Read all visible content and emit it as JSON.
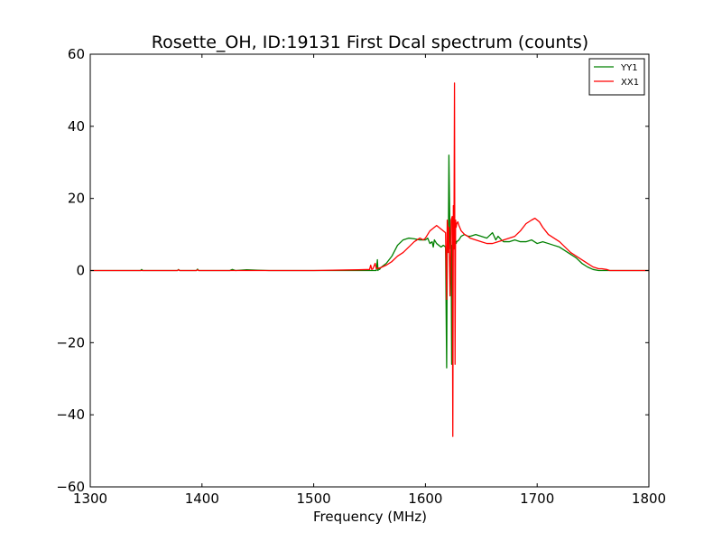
{
  "chart_data": {
    "type": "line",
    "title": "Rosette_OH, ID:19131 First Dcal spectrum (counts)",
    "xlabel": "Frequency (MHz)",
    "ylabel": "",
    "xlim": [
      1300,
      1800
    ],
    "ylim": [
      -60,
      60
    ],
    "xticks": [
      1300,
      1400,
      1500,
      1600,
      1700,
      1800
    ],
    "xtick_labels": [
      "1300",
      "1400",
      "1500",
      "1600",
      "1700",
      "1800"
    ],
    "yticks": [
      -60,
      -40,
      -20,
      0,
      20,
      40,
      60
    ],
    "ytick_labels": [
      "−60",
      "−40",
      "−20",
      "0",
      "20",
      "40",
      "60"
    ],
    "grid": false,
    "legend_position": "top-right",
    "series": [
      {
        "name": "YY1",
        "color": "#008000",
        "x": [
          1300,
          1345,
          1346,
          1347,
          1378,
          1379,
          1380,
          1395,
          1396,
          1397,
          1425,
          1427,
          1430,
          1440,
          1450,
          1460,
          1461,
          1500,
          1540,
          1556,
          1557,
          1557.5,
          1558,
          1559,
          1560,
          1565,
          1570,
          1575,
          1580,
          1585,
          1590,
          1595,
          1600,
          1602,
          1604,
          1606,
          1607,
          1608,
          1610,
          1612,
          1614,
          1616,
          1617,
          1618,
          1619,
          1619.5,
          1620,
          1620.5,
          1621,
          1622,
          1622.5,
          1623,
          1623.5,
          1624,
          1625,
          1626,
          1626.5,
          1627,
          1627.5,
          1628,
          1630,
          1632,
          1635,
          1638,
          1640,
          1645,
          1650,
          1655,
          1660,
          1663,
          1665,
          1668,
          1670,
          1675,
          1680,
          1685,
          1690,
          1695,
          1700,
          1705,
          1710,
          1715,
          1720,
          1725,
          1730,
          1735,
          1740,
          1745,
          1750,
          1755,
          1760,
          1765,
          1770,
          1800
        ],
        "y": [
          0,
          0,
          0.3,
          0,
          0,
          0.3,
          0,
          0,
          0.4,
          0,
          0,
          0.3,
          0,
          0.2,
          0.1,
          0,
          0,
          0,
          0,
          0,
          3,
          0,
          0.5,
          0.3,
          0.8,
          2,
          4,
          7,
          8.5,
          9,
          8.8,
          8.5,
          8.5,
          9,
          7.5,
          8,
          6.5,
          8.5,
          7.5,
          7,
          6.5,
          7,
          6.8,
          6.5,
          -27,
          7,
          7.3,
          7,
          32,
          8,
          6,
          7,
          -26,
          8,
          8.5,
          9,
          8,
          8.5,
          7.5,
          8,
          8.5,
          9.5,
          10,
          9.5,
          9.5,
          10,
          9.5,
          9,
          10.5,
          8.5,
          9.5,
          8.5,
          8,
          8,
          8.5,
          8,
          8,
          8.5,
          7.5,
          8,
          7.5,
          7,
          6.5,
          5.5,
          4.5,
          3.5,
          2,
          1,
          0.3,
          0,
          0,
          0,
          0,
          0
        ]
      },
      {
        "name": "XX1",
        "color": "#ff0000",
        "x": [
          1300,
          1345,
          1378,
          1379,
          1380,
          1395,
          1396,
          1397,
          1500,
          1540,
          1550,
          1551,
          1552,
          1553,
          1555,
          1556,
          1560,
          1565,
          1570,
          1575,
          1580,
          1585,
          1590,
          1595,
          1598,
          1600,
          1602,
          1604,
          1606,
          1608,
          1610,
          1612,
          1614,
          1616,
          1618,
          1619,
          1619.5,
          1620,
          1620.5,
          1621,
          1622,
          1623,
          1624,
          1624.5,
          1625,
          1625.5,
          1626,
          1626.5,
          1627,
          1627.5,
          1628,
          1629,
          1630,
          1632,
          1635,
          1638,
          1640,
          1645,
          1650,
          1655,
          1660,
          1665,
          1670,
          1675,
          1680,
          1685,
          1690,
          1695,
          1698,
          1700,
          1702,
          1705,
          1710,
          1715,
          1720,
          1725,
          1730,
          1735,
          1740,
          1745,
          1750,
          1755,
          1758,
          1762,
          1765,
          1770,
          1800
        ],
        "y": [
          0,
          0,
          0,
          0.2,
          0,
          0,
          0.2,
          0,
          0,
          0.2,
          0.3,
          1.5,
          0.3,
          0.5,
          2,
          0.5,
          0.8,
          1.5,
          2.5,
          4,
          5,
          6.5,
          8,
          9,
          8.5,
          9,
          10,
          11,
          11.5,
          12,
          12.5,
          12,
          11.5,
          11,
          10.5,
          -8,
          14,
          12,
          5,
          12,
          -7,
          14,
          15,
          -46,
          18,
          6,
          52,
          -26,
          14,
          12,
          13,
          13.5,
          12.5,
          11,
          10,
          9.5,
          9,
          8.5,
          8,
          7.5,
          7.5,
          8,
          8.5,
          9,
          9.5,
          11,
          13,
          14,
          14.5,
          14,
          13.5,
          12,
          10,
          9,
          8,
          6.5,
          5,
          4,
          3,
          2,
          1,
          0.5,
          0.5,
          0.3,
          0,
          0,
          0
        ]
      }
    ]
  }
}
